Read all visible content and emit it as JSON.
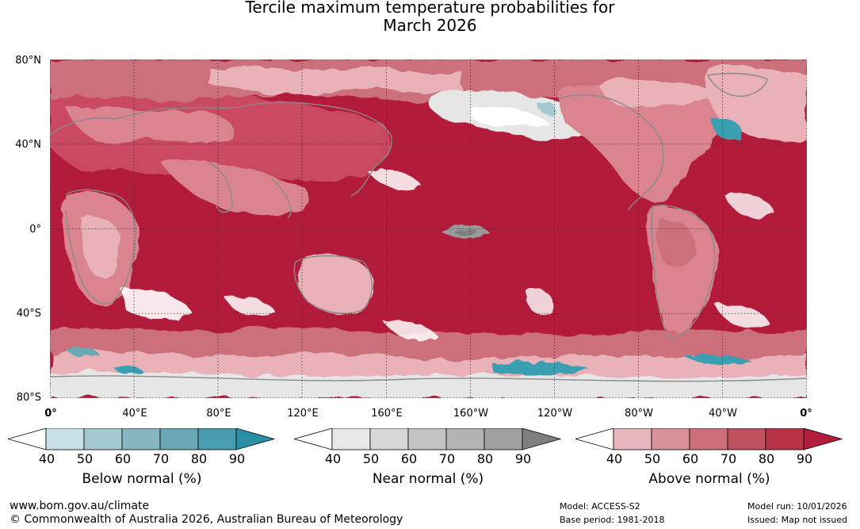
{
  "title": {
    "line1": "Tercile maximum temperature probabilities for",
    "line2": "March 2026"
  },
  "map": {
    "lat_labels": [
      "80°N",
      "40°N",
      "0°",
      "40°S",
      "80°S"
    ],
    "lon_labels": [
      "0°",
      "40°E",
      "80°E",
      "120°E",
      "160°E",
      "160°W",
      "120°W",
      "80°W",
      "40°W",
      "0°"
    ],
    "colors": {
      "above_main": "#b31b3a",
      "above_mid": "#c94a60",
      "above_light": "#d9848f",
      "above_pale": "#e8b2b8",
      "near_grey": "#9a9a9a",
      "below_teal": "#3b9fb2",
      "land_outline": "#8a8a8a"
    }
  },
  "colorbars": [
    {
      "title": "Below normal (%)",
      "ticks": [
        "40",
        "50",
        "60",
        "70",
        "80",
        "90"
      ],
      "colors": [
        "#ffffff",
        "#c7e1e7",
        "#a5c9d0",
        "#88b6c0",
        "#6aa7b5",
        "#4a9dae",
        "#2a8fa3"
      ]
    },
    {
      "title": "Near normal (%)",
      "ticks": [
        "40",
        "50",
        "60",
        "70",
        "80",
        "90"
      ],
      "colors": [
        "#ffffff",
        "#e8e8e8",
        "#d7d7d7",
        "#c4c4c4",
        "#b3b3b3",
        "#a0a0a0",
        "#7f7f7f"
      ]
    },
    {
      "title": "Above normal (%)",
      "ticks": [
        "40",
        "50",
        "60",
        "70",
        "80",
        "90"
      ],
      "colors": [
        "#ffffff",
        "#e8b7bd",
        "#d9919a",
        "#cc6f7b",
        "#c0525f",
        "#b83447",
        "#b51b3c"
      ]
    }
  ],
  "footer": {
    "url": "www.bom.gov.au/climate",
    "copyright": "© Commonwealth of Australia 2026, Australian Bureau of Meteorology",
    "model": "Model: ACCESS-S2",
    "base_period": "Base period: 1981-2018",
    "model_run": "Model run: 10/01/2026",
    "issued": "Issued: Map not issued"
  }
}
